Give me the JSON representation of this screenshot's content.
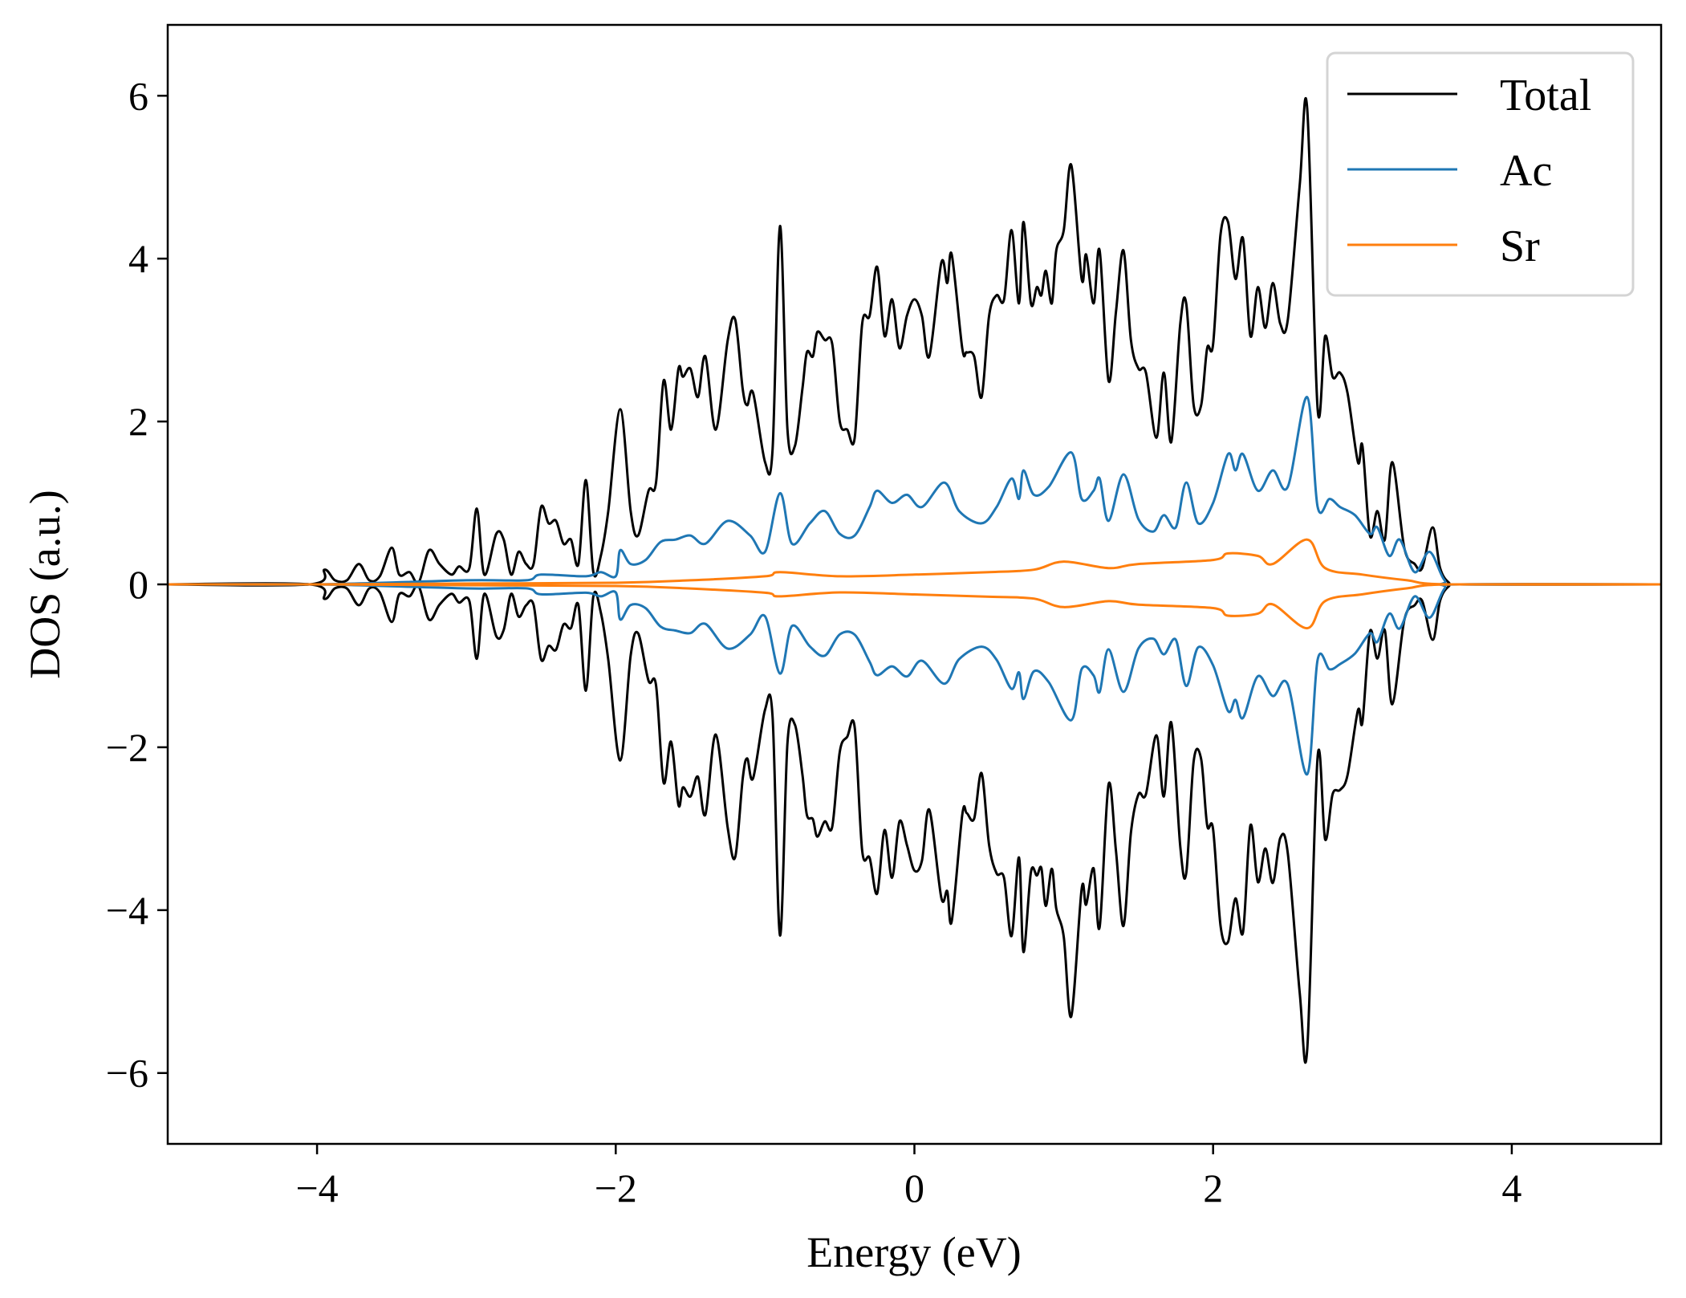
{
  "chart_data": {
    "type": "line",
    "title": "",
    "xlabel": "Energy (eV)",
    "ylabel": "DOS (a.u.)",
    "xlim": [
      -5,
      5
    ],
    "ylim": [
      -6.87,
      6.87
    ],
    "xticks": [
      -4,
      -2,
      0,
      2,
      4
    ],
    "xtick_labels": [
      "−4",
      "−2",
      "0",
      "2",
      "4"
    ],
    "yticks": [
      -6,
      -4,
      -2,
      0,
      2,
      4,
      6
    ],
    "ytick_labels": [
      "−6",
      "−4",
      "−2",
      "0",
      "2",
      "4",
      "6"
    ],
    "grid": false,
    "legend_position": "top-right",
    "spin_down": "negative mirror of spin-up values",
    "series": [
      {
        "name": "Total",
        "color": "#000000",
        "x": [
          -5,
          -4.05,
          -3.95,
          -3.88,
          -3.8,
          -3.72,
          -3.65,
          -3.58,
          -3.5,
          -3.45,
          -3.38,
          -3.32,
          -3.25,
          -3.18,
          -3.1,
          -3.05,
          -2.98,
          -2.93,
          -2.88,
          -2.8,
          -2.75,
          -2.7,
          -2.65,
          -2.6,
          -2.55,
          -2.5,
          -2.45,
          -2.4,
          -2.35,
          -2.3,
          -2.25,
          -2.2,
          -2.15,
          -2.1,
          -2.05,
          -1.97,
          -1.9,
          -1.85,
          -1.78,
          -1.73,
          -1.68,
          -1.63,
          -1.58,
          -1.55,
          -1.5,
          -1.45,
          -1.4,
          -1.33,
          -1.25,
          -1.2,
          -1.15,
          -1.12,
          -1.08,
          -1.0,
          -0.95,
          -0.9,
          -0.85,
          -0.8,
          -0.75,
          -0.72,
          -0.68,
          -0.65,
          -0.6,
          -0.55,
          -0.5,
          -0.45,
          -0.4,
          -0.35,
          -0.3,
          -0.25,
          -0.2,
          -0.15,
          -0.1,
          -0.05,
          0.0,
          0.05,
          0.1,
          0.18,
          0.22,
          0.25,
          0.32,
          0.35,
          0.4,
          0.45,
          0.5,
          0.55,
          0.6,
          0.65,
          0.7,
          0.73,
          0.78,
          0.82,
          0.85,
          0.88,
          0.92,
          0.95,
          1.0,
          1.05,
          1.12,
          1.15,
          1.2,
          1.24,
          1.3,
          1.35,
          1.4,
          1.45,
          1.5,
          1.55,
          1.62,
          1.67,
          1.72,
          1.78,
          1.82,
          1.87,
          1.92,
          1.96,
          2.0,
          2.05,
          2.1,
          2.15,
          2.2,
          2.25,
          2.3,
          2.35,
          2.4,
          2.45,
          2.5,
          2.58,
          2.63,
          2.7,
          2.75,
          2.8,
          2.85,
          2.9,
          2.97,
          3.0,
          3.05,
          3.1,
          3.15,
          3.2,
          3.28,
          3.35,
          3.4,
          3.47,
          3.52,
          3.58,
          3.65,
          5
        ],
        "y": [
          0,
          0,
          0.18,
          0.05,
          0.05,
          0.25,
          0.05,
          0.1,
          0.45,
          0.12,
          0.15,
          0.02,
          0.42,
          0.25,
          0.12,
          0.22,
          0.2,
          0.93,
          0.12,
          0.62,
          0.55,
          0.12,
          0.4,
          0.25,
          0.25,
          0.95,
          0.75,
          0.78,
          0.5,
          0.55,
          0.25,
          1.28,
          0.15,
          0.35,
          0.9,
          2.15,
          0.9,
          0.6,
          1.15,
          1.25,
          2.5,
          1.9,
          2.65,
          2.55,
          2.65,
          2.3,
          2.8,
          1.9,
          3.0,
          3.25,
          2.4,
          2.2,
          2.35,
          1.5,
          1.65,
          4.4,
          1.9,
          1.7,
          2.4,
          2.85,
          2.8,
          3.1,
          3.0,
          2.95,
          2.0,
          1.9,
          1.8,
          3.2,
          3.3,
          3.9,
          3.05,
          3.5,
          2.9,
          3.3,
          3.5,
          3.3,
          2.8,
          3.95,
          3.7,
          4.05,
          2.9,
          2.85,
          2.8,
          2.3,
          3.3,
          3.55,
          3.5,
          4.35,
          3.45,
          4.45,
          3.45,
          3.65,
          3.55,
          3.85,
          3.45,
          4.1,
          4.35,
          5.15,
          3.75,
          4.05,
          3.45,
          4.1,
          2.5,
          3.35,
          4.1,
          3.0,
          2.65,
          2.6,
          1.8,
          2.6,
          1.75,
          3.2,
          3.45,
          2.2,
          2.2,
          2.9,
          2.95,
          4.3,
          4.45,
          3.75,
          4.25,
          3.05,
          3.65,
          3.15,
          3.7,
          3.2,
          3.25,
          4.9,
          5.85,
          2.15,
          3.05,
          2.55,
          2.6,
          2.35,
          1.5,
          1.7,
          0.6,
          0.9,
          0.55,
          1.5,
          0.45,
          0.25,
          0.2,
          0.7,
          0.2,
          0.02,
          0,
          0
        ]
      },
      {
        "name": "Ac",
        "color": "#1f77b4",
        "x": [
          -5,
          -4,
          -3,
          -2.6,
          -2.5,
          -2.2,
          -2.1,
          -2.0,
          -1.97,
          -1.9,
          -1.8,
          -1.7,
          -1.6,
          -1.5,
          -1.4,
          -1.25,
          -1.1,
          -1.0,
          -0.9,
          -0.82,
          -0.7,
          -0.6,
          -0.5,
          -0.4,
          -0.3,
          -0.25,
          -0.15,
          -0.05,
          0.05,
          0.2,
          0.3,
          0.45,
          0.55,
          0.65,
          0.7,
          0.73,
          0.8,
          0.9,
          1.05,
          1.12,
          1.2,
          1.24,
          1.3,
          1.4,
          1.5,
          1.6,
          1.67,
          1.75,
          1.82,
          1.9,
          2.0,
          2.1,
          2.15,
          2.2,
          2.3,
          2.4,
          2.5,
          2.63,
          2.7,
          2.78,
          2.85,
          2.95,
          3.05,
          3.1,
          3.18,
          3.25,
          3.35,
          3.45,
          3.55,
          3.65,
          5
        ],
        "y": [
          0,
          0,
          0.05,
          0.05,
          0.12,
          0.1,
          0.15,
          0.1,
          0.42,
          0.25,
          0.3,
          0.52,
          0.55,
          0.6,
          0.5,
          0.78,
          0.6,
          0.4,
          1.12,
          0.5,
          0.75,
          0.9,
          0.62,
          0.6,
          0.95,
          1.15,
          1.0,
          1.1,
          0.95,
          1.25,
          0.9,
          0.75,
          0.95,
          1.3,
          1.05,
          1.4,
          1.1,
          1.2,
          1.62,
          1.05,
          1.15,
          1.3,
          0.78,
          1.35,
          0.8,
          0.65,
          0.85,
          0.7,
          1.25,
          0.75,
          1.0,
          1.6,
          1.4,
          1.6,
          1.15,
          1.4,
          1.2,
          2.3,
          0.95,
          1.05,
          0.95,
          0.85,
          0.62,
          0.7,
          0.35,
          0.55,
          0.15,
          0.4,
          0.05,
          0,
          0
        ]
      },
      {
        "name": "Sr",
        "color": "#ff7f0e",
        "x": [
          -5,
          -4,
          -3,
          -2,
          -1.5,
          -1,
          -0.9,
          -0.5,
          0,
          0.5,
          0.8,
          1,
          1.3,
          1.5,
          2,
          2.1,
          2.3,
          2.4,
          2.63,
          2.75,
          3.0,
          3.3,
          3.6,
          5
        ],
        "y": [
          0,
          0,
          0.01,
          0.02,
          0.05,
          0.1,
          0.15,
          0.1,
          0.12,
          0.15,
          0.18,
          0.28,
          0.2,
          0.25,
          0.3,
          0.38,
          0.35,
          0.25,
          0.55,
          0.2,
          0.12,
          0.05,
          0,
          0
        ]
      }
    ]
  }
}
